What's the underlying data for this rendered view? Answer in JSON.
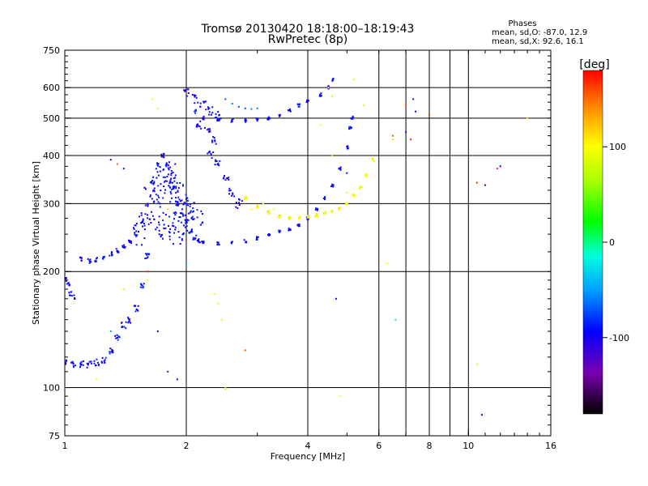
{
  "header": {
    "title_line1": "Tromsø 20130420 18:18:00–18:19:43",
    "title_line2": "RwPretec (8p)",
    "stats_title": "Phases",
    "stats_o": "mean, sd,O: -87.0, 12.9",
    "stats_x": "mean, sd,X:  92.6, 16.1"
  },
  "colorbar": {
    "label": "[deg]",
    "ticks": [
      {
        "value": 100,
        "label": "100"
      },
      {
        "value": 0,
        "label": "0"
      },
      {
        "value": -100,
        "label": "-100"
      }
    ],
    "range": [
      -180,
      180
    ]
  },
  "chart_data": {
    "type": "scatter",
    "xlabel": "Frequency [MHz]",
    "ylabel": "Stationary phase Virtual Height [km]",
    "x_scale": "log",
    "y_scale": "log",
    "xlim": [
      1,
      16
    ],
    "ylim": [
      75,
      750
    ],
    "x_ticks": [
      {
        "value": 1,
        "label": "1"
      },
      {
        "value": 2,
        "label": "2"
      },
      {
        "value": 4,
        "label": "4"
      },
      {
        "value": 6,
        "label": "6"
      },
      {
        "value": 8,
        "label": "8"
      },
      {
        "value": 10,
        "label": "10"
      },
      {
        "value": 16,
        "label": "16"
      }
    ],
    "y_ticks": [
      {
        "value": 75,
        "label": "75"
      },
      {
        "value": 100,
        "label": "100"
      },
      {
        "value": 200,
        "label": "200"
      },
      {
        "value": 300,
        "label": "300"
      },
      {
        "value": 400,
        "label": "400"
      },
      {
        "value": 500,
        "label": "500"
      },
      {
        "value": 600,
        "label": "600"
      },
      {
        "value": 750,
        "label": "750"
      }
    ],
    "x_gridlines": [
      2,
      4,
      6,
      7,
      8,
      9,
      10
    ],
    "y_gridlines": [
      100,
      200,
      300,
      400,
      500,
      600
    ],
    "grid": true,
    "color_encoding": "phase [deg]",
    "series": [
      {
        "phase": -95,
        "spread": 0.6,
        "points": [
          [
            1.0,
            116
          ],
          [
            1.05,
            115
          ],
          [
            1.1,
            115
          ],
          [
            1.15,
            115
          ],
          [
            1.2,
            116
          ],
          [
            1.25,
            118
          ],
          [
            1.3,
            125
          ],
          [
            1.35,
            135
          ],
          [
            1.4,
            145
          ],
          [
            1.45,
            150
          ],
          [
            1.5,
            160
          ],
          [
            1.55,
            185
          ],
          [
            1.6,
            220
          ]
        ]
      },
      {
        "phase": -95,
        "spread": 0.4,
        "points": [
          [
            1.0,
            190
          ],
          [
            1.02,
            185
          ],
          [
            1.03,
            175
          ],
          [
            1.05,
            172
          ],
          [
            1.1,
            215
          ],
          [
            1.15,
            213
          ],
          [
            1.2,
            215
          ],
          [
            1.25,
            218
          ],
          [
            1.3,
            222
          ],
          [
            1.35,
            226
          ],
          [
            1.4,
            232
          ],
          [
            1.45,
            238
          ],
          [
            1.5,
            250
          ],
          [
            1.55,
            270
          ],
          [
            1.6,
            300
          ],
          [
            1.65,
            340
          ],
          [
            1.7,
            380
          ],
          [
            1.75,
            400
          ],
          [
            1.8,
            380
          ],
          [
            1.85,
            330
          ],
          [
            1.9,
            300
          ],
          [
            1.95,
            280
          ],
          [
            2.0,
            270
          ],
          [
            2.05,
            255
          ],
          [
            2.1,
            245
          ],
          [
            2.15,
            240
          ]
        ]
      },
      {
        "phase": -95,
        "spread": 2.0,
        "points": [
          [
            1.55,
            250
          ],
          [
            1.6,
            280
          ],
          [
            1.65,
            310
          ],
          [
            1.7,
            330
          ],
          [
            1.75,
            350
          ],
          [
            1.8,
            360
          ],
          [
            1.85,
            340
          ],
          [
            1.9,
            320
          ],
          [
            1.95,
            300
          ],
          [
            2.0,
            290
          ],
          [
            1.7,
            260
          ],
          [
            1.8,
            270
          ],
          [
            1.9,
            250
          ],
          [
            2.0,
            260
          ],
          [
            2.1,
            280
          ]
        ]
      },
      {
        "phase": -95,
        "spread": 0.3,
        "points": [
          [
            2.2,
            238
          ],
          [
            2.4,
            236
          ],
          [
            2.6,
            237
          ],
          [
            2.8,
            240
          ],
          [
            3.0,
            244
          ],
          [
            3.2,
            248
          ],
          [
            3.4,
            253
          ],
          [
            3.6,
            258
          ],
          [
            3.8,
            264
          ],
          [
            4.0,
            275
          ],
          [
            4.2,
            290
          ],
          [
            4.4,
            310
          ],
          [
            4.6,
            335
          ],
          [
            4.8,
            370
          ],
          [
            5.0,
            420
          ],
          [
            5.1,
            470
          ],
          [
            5.15,
            500
          ]
        ]
      },
      {
        "phase": -95,
        "spread": 0.3,
        "points": [
          [
            2.1,
            520
          ],
          [
            2.2,
            500
          ],
          [
            2.4,
            495
          ],
          [
            2.6,
            493
          ],
          [
            2.8,
            492
          ],
          [
            3.0,
            495
          ],
          [
            3.2,
            500
          ],
          [
            3.4,
            510
          ],
          [
            3.6,
            525
          ],
          [
            3.8,
            540
          ],
          [
            4.0,
            555
          ],
          [
            4.3,
            575
          ],
          [
            4.5,
            600
          ],
          [
            4.6,
            630
          ]
        ]
      },
      {
        "phase": -100,
        "spread": 0.8,
        "points": [
          [
            2.0,
            580
          ],
          [
            2.1,
            560
          ],
          [
            2.2,
            540
          ],
          [
            2.3,
            520
          ],
          [
            2.4,
            510
          ],
          [
            2.15,
            480
          ],
          [
            2.25,
            460
          ],
          [
            2.35,
            440
          ],
          [
            2.3,
            400
          ],
          [
            2.4,
            380
          ],
          [
            2.5,
            350
          ],
          [
            2.6,
            320
          ],
          [
            2.7,
            300
          ]
        ]
      },
      {
        "phase": 100,
        "spread": 0.3,
        "points": [
          [
            2.8,
            310
          ],
          [
            3.0,
            295
          ],
          [
            3.2,
            285
          ],
          [
            3.4,
            278
          ],
          [
            3.6,
            276
          ],
          [
            3.8,
            276
          ],
          [
            4.0,
            278
          ],
          [
            4.2,
            280
          ],
          [
            4.4,
            283
          ],
          [
            4.6,
            287
          ],
          [
            4.8,
            292
          ],
          [
            5.0,
            300
          ],
          [
            5.2,
            315
          ],
          [
            5.4,
            330
          ],
          [
            5.6,
            355
          ],
          [
            5.8,
            390
          ]
        ]
      },
      {
        "phase": -60,
        "spread": 0.2,
        "points": [
          [
            2.5,
            560
          ],
          [
            2.6,
            545
          ],
          [
            2.7,
            535
          ],
          [
            2.8,
            530
          ],
          [
            2.9,
            528
          ],
          [
            3.0,
            530
          ]
        ]
      },
      {
        "phase": 100,
        "spread": 0.1,
        "points": [
          [
            2.35,
            175
          ],
          [
            2.4,
            165
          ],
          [
            2.45,
            150
          ],
          [
            2.5,
            100
          ],
          [
            2.5,
            99
          ],
          [
            1.65,
            560
          ],
          [
            1.7,
            530
          ],
          [
            4.5,
            600
          ],
          [
            4.6,
            570
          ],
          [
            5.2,
            630
          ],
          [
            5.5,
            540
          ],
          [
            4.3,
            480
          ],
          [
            4.6,
            400
          ],
          [
            5.0,
            320
          ],
          [
            1.0,
            95
          ],
          [
            1.2,
            105
          ],
          [
            1.4,
            180
          ],
          [
            1.6,
            190
          ],
          [
            2.9,
            290
          ],
          [
            3.1,
            300
          ],
          [
            3.3,
            290
          ]
        ]
      },
      {
        "phase": -100,
        "spread": 0.1,
        "points": [
          [
            1.3,
            390
          ],
          [
            1.4,
            370
          ],
          [
            1.7,
            140
          ],
          [
            1.8,
            110
          ],
          [
            1.9,
            105
          ],
          [
            4.7,
            170
          ],
          [
            5.0,
            360
          ],
          [
            7.0,
            460
          ],
          [
            7.3,
            560
          ],
          [
            7.4,
            520
          ],
          [
            11.0,
            335
          ],
          [
            12.0,
            375
          ],
          [
            10.8,
            85
          ]
        ]
      },
      {
        "phase": 160,
        "spread": 0.1,
        "points": [
          [
            1.35,
            380
          ],
          [
            1.6,
            200
          ],
          [
            2.8,
            125
          ],
          [
            7.0,
            540
          ],
          [
            7.2,
            440
          ],
          [
            10.5,
            340
          ],
          [
            11.8,
            370
          ],
          [
            8.0,
            510
          ],
          [
            6.5,
            450
          ]
        ]
      },
      {
        "phase": 110,
        "spread": 0.1,
        "points": [
          [
            6.3,
            210
          ],
          [
            6.5,
            440
          ],
          [
            10.5,
            115
          ],
          [
            14.0,
            500
          ],
          [
            4.8,
            95
          ],
          [
            2.2,
            75
          ],
          [
            1.8,
            290
          ]
        ]
      },
      {
        "phase": -40,
        "spread": 0.1,
        "points": [
          [
            6.6,
            150
          ],
          [
            1.3,
            140
          ],
          [
            2.0,
            210
          ]
        ]
      }
    ]
  }
}
